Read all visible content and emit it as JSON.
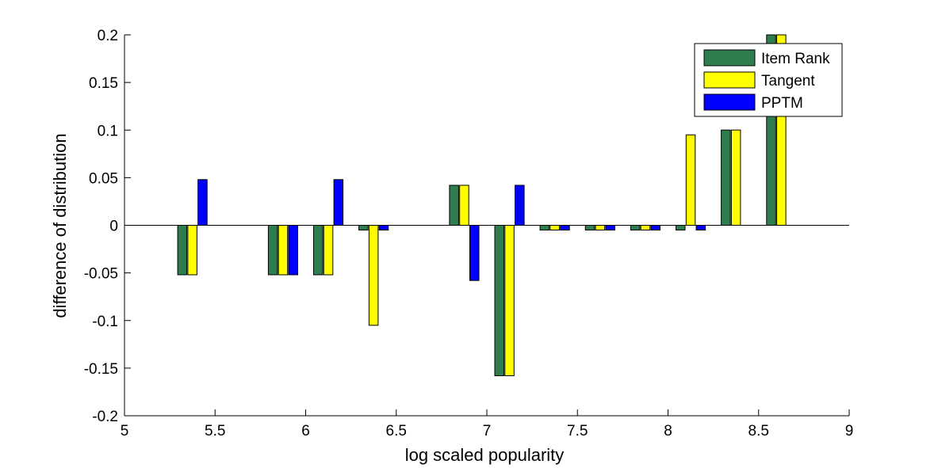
{
  "chart_data": {
    "type": "bar",
    "xlabel": "log scaled popularity",
    "ylabel": "difference of distribution",
    "xlim": [
      5,
      9
    ],
    "ylim": [
      -0.2,
      0.2
    ],
    "xticks": [
      "5",
      "5.5",
      "6",
      "6.5",
      "7",
      "7.5",
      "8",
      "8.5",
      "9"
    ],
    "yticks": [
      "-0.2",
      "-0.15",
      "-0.1",
      "-0.05",
      "0",
      "0.05",
      "0.1",
      "0.15",
      "0.2"
    ],
    "grid": false,
    "legend_position": "top-right",
    "x": [
      5.375,
      5.875,
      6.125,
      6.375,
      6.875,
      7.125,
      7.375,
      7.625,
      7.875,
      8.125,
      8.375,
      8.625
    ],
    "series": [
      {
        "name": "Item Rank",
        "color": "#2e7d4f",
        "values": [
          -0.052,
          -0.052,
          -0.052,
          -0.005,
          0.042,
          -0.158,
          -0.005,
          -0.005,
          -0.005,
          -0.005,
          0.1,
          0.2
        ]
      },
      {
        "name": "Tangent",
        "color": "#ffff00",
        "values": [
          -0.052,
          -0.052,
          -0.052,
          -0.105,
          0.042,
          -0.158,
          -0.005,
          -0.005,
          -0.005,
          0.095,
          0.1,
          0.2
        ]
      },
      {
        "name": "PPTM",
        "color": "#0000ff",
        "values": [
          0.048,
          -0.052,
          0.048,
          -0.005,
          -0.058,
          0.042,
          -0.005,
          -0.005,
          -0.005,
          -0.005,
          0,
          0
        ]
      }
    ]
  }
}
